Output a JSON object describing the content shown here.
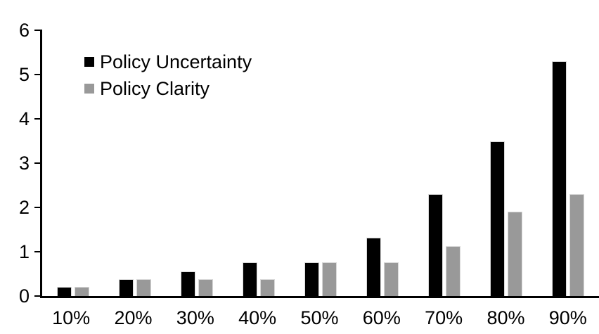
{
  "chart_data": {
    "type": "bar",
    "title": "",
    "xlabel": "",
    "ylabel": "",
    "categories": [
      "10%",
      "20%",
      "30%",
      "40%",
      "50%",
      "60%",
      "70%",
      "80%",
      "90%"
    ],
    "series": [
      {
        "name": "Policy Uncertainty",
        "color": "#000000",
        "values": [
          0.2,
          0.38,
          0.56,
          0.76,
          0.76,
          1.32,
          2.3,
          3.5,
          5.3
        ]
      },
      {
        "name": "Policy Clarity",
        "color": "#999999",
        "values": [
          0.2,
          0.38,
          0.38,
          0.38,
          0.76,
          0.76,
          1.13,
          1.9,
          2.3
        ]
      }
    ],
    "ylim": [
      0,
      6
    ],
    "yticks": [
      0,
      1,
      2,
      3,
      4,
      5,
      6
    ],
    "grid": false,
    "legend_position": "inside-top-left"
  },
  "colors": {
    "background": "#ffffff",
    "axis": "#000000",
    "text": "#000000",
    "bar_outline": "#d9d9d9"
  }
}
